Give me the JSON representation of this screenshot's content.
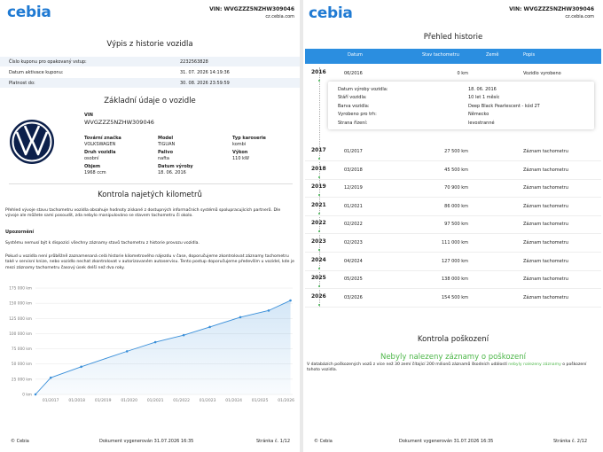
{
  "pages": [
    {
      "logo": "cebia",
      "vin": "VIN: WVGZZZ5NZHW309046",
      "site": "cz.cebia.com",
      "title": "Výpis z historie vozidla",
      "coupon": [
        [
          "Číslo kuponu pro opakovaný vstup:",
          "2232563828"
        ],
        [
          "Datum aktivace kuponu:",
          "31. 07. 2026 14:19:36"
        ],
        [
          "Platnost do:",
          "30. 08. 2026 23:59:59"
        ]
      ],
      "vehicle_title": "Základní údaje o vozidle",
      "vin_label": "VIN",
      "vin_value": "WVGZZZ5NZHW309046",
      "fields": [
        [
          "Tovární značka",
          "VOLKSWAGEN"
        ],
        [
          "Model",
          "TIGUAN"
        ],
        [
          "Typ karoserie",
          "kombi"
        ],
        [
          "Druh vozidla",
          "osobní"
        ],
        [
          "Palivo",
          "nafta"
        ],
        [
          "Výkon",
          "110 kW"
        ],
        [
          "Objem",
          "1968 ccm"
        ],
        [
          "Datum výroby",
          "18. 06. 2016"
        ]
      ],
      "km_title": "Kontrola najetých kilometrů",
      "intro": "Přehled vývoje stavu tachometru vozidla obsahuje hodnoty získané z dostupných informačních systémů spolupracujících partnerů. Dle vývoje ale můžete sami posoudit, zda nebylo manipulováno se stavem tachometru či okolo.",
      "warning_title": "Upozornění",
      "warning": "Systému nemusí být k dispozici všechny záznamy stavů tachometru z historie provozu vozidla.",
      "advice": "Pokud u vozidla není průběžně zaznamenaná celá historie kilometrového nájezdu v čase, doporučujeme zkontrolovat záznamy tachometru také v servisní knize, nebo vozidlo nechat zkontrolovat v autorizovaném autoservisu. Tento postup doporučujeme především u vozidel, kde je mezi záznamy tachometru časový úsek delší než dva roky.",
      "footer": [
        "© Cebia",
        "Dokument vygenerován 31.07.2026 16:35",
        "Stránka č. 1/12"
      ]
    },
    {
      "logo": "cebia",
      "vin": "VIN: WVGZZZ5NZHW309046",
      "site": "cz.cebia.com",
      "title": "Přehled historie",
      "columns": [
        "Datum",
        "Stav tachometru",
        "Země",
        "Popis"
      ],
      "rows": [
        {
          "year": "2016",
          "date": "06/2016",
          "km": "0 km",
          "desc": "Vozidlo vyrobeno"
        },
        {
          "year": "2017",
          "date": "01/2017",
          "km": "27 500 km",
          "desc": "Záznam tachometru"
        },
        {
          "year": "2018",
          "date": "03/2018",
          "km": "45 500 km",
          "desc": "Záznam tachometru"
        },
        {
          "year": "2019",
          "date": "12/2019",
          "km": "70 900 km",
          "desc": "Záznam tachometru"
        },
        {
          "year": "2021",
          "date": "01/2021",
          "km": "86 000 km",
          "desc": "Záznam tachometru"
        },
        {
          "year": "2022",
          "date": "02/2022",
          "km": "97 500 km",
          "desc": "Záznam tachometru"
        },
        {
          "year": "2023",
          "date": "02/2023",
          "km": "111 000 km",
          "desc": "Záznam tachometru"
        },
        {
          "year": "2024",
          "date": "04/2024",
          "km": "127 000 km",
          "desc": "Záznam tachometru"
        },
        {
          "year": "2025",
          "date": "05/2025",
          "km": "138 000 km",
          "desc": "Záznam tachometru"
        },
        {
          "year": "2026",
          "date": "03/2026",
          "km": "154 500 km",
          "desc": "Záznam tachometru"
        }
      ],
      "details": [
        [
          "Datum výroby vozidla:",
          "18. 06. 2016"
        ],
        [
          "Stáří vozidla:",
          "10 let 1 měsíc"
        ],
        [
          "Barva vozidla:",
          "Deep Black Pearlescent - kód 2T"
        ],
        [
          "Vyrobeno pro trh:",
          "Německo"
        ],
        [
          "Strana řízení:",
          "levostranné"
        ]
      ],
      "damage_title": "Kontrola poškození",
      "damage_status": "Nebyly nalezeny záznamy o poškození",
      "damage_text": [
        "V databázích poškozených vozů z více než 30 zemí čítající 200 milionů záznamů škodních událostí ",
        "nebyly nalezeny záznamy",
        " o poškození tohoto vozidla."
      ],
      "footer": [
        "© Cebia",
        "Dokument vygenerován 31.07.2026 16:35",
        "Stránka č. 2/12"
      ]
    }
  ],
  "chart_data": {
    "type": "line",
    "color": "#3a8fd9",
    "x": [
      "06/2016",
      "01/2017",
      "03/2018",
      "12/2019",
      "01/2021",
      "02/2022",
      "02/2023",
      "04/2024",
      "05/2025",
      "03/2026"
    ],
    "values": [
      0,
      27500,
      45500,
      70900,
      86000,
      97500,
      111000,
      127000,
      138000,
      154500
    ],
    "xlim": [
      "06/2016",
      "04/2026"
    ],
    "xticks": [
      "01/2017",
      "01/2018",
      "01/2019",
      "01/2020",
      "01/2021",
      "01/2022",
      "01/2023",
      "01/2024",
      "01/2025",
      "01/2026"
    ],
    "ylim": [
      0,
      175000
    ],
    "yticks": [
      {
        "value": 0,
        "label": "0 km"
      },
      {
        "value": 25000,
        "label": "25 000 km"
      },
      {
        "value": 50000,
        "label": "50 000 km"
      },
      {
        "value": 75000,
        "label": "75 000 km"
      },
      {
        "value": 100000,
        "label": "100 000 km"
      },
      {
        "value": 125000,
        "label": "125 000 km"
      },
      {
        "value": 150000,
        "label": "150 000 km"
      },
      {
        "value": 175000,
        "label": "175 000 km"
      }
    ],
    "grid": true
  }
}
